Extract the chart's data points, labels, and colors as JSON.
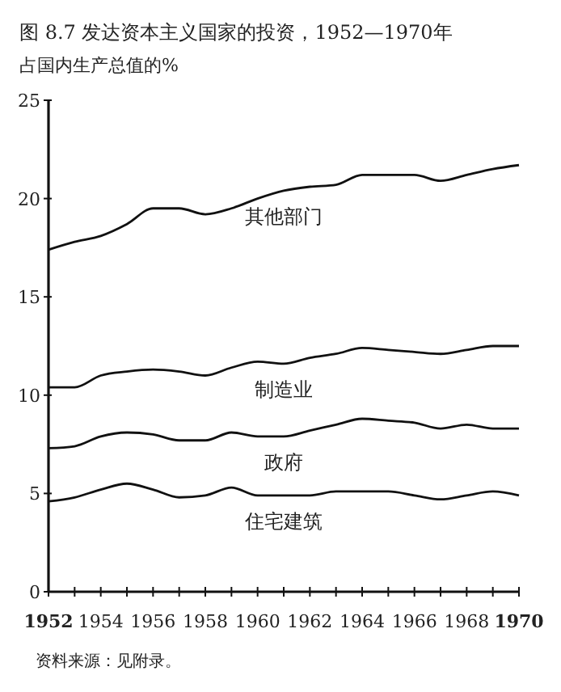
{
  "chart_data": {
    "type": "line",
    "title": "图 8.7 发达资本主义国家的投资，1952—1970年",
    "subtitle": "占国内生产总值的%",
    "annotations": [
      "资料来源：见附录。"
    ],
    "x": [
      1952,
      1953,
      1954,
      1955,
      1956,
      1957,
      1958,
      1959,
      1960,
      1961,
      1962,
      1963,
      1964,
      1965,
      1966,
      1967,
      1968,
      1969,
      1970
    ],
    "series": [
      {
        "name": "其他部门",
        "color": "#111111",
        "values": [
          17.4,
          17.8,
          18.1,
          18.7,
          19.5,
          19.5,
          19.2,
          19.5,
          20.0,
          20.4,
          20.6,
          20.7,
          21.2,
          21.2,
          21.2,
          20.9,
          21.2,
          21.5,
          21.7
        ]
      },
      {
        "name": "制造业",
        "color": "#111111",
        "values": [
          10.4,
          10.4,
          11.0,
          11.2,
          11.3,
          11.2,
          11.0,
          11.4,
          11.7,
          11.6,
          11.9,
          12.1,
          12.4,
          12.3,
          12.2,
          12.1,
          12.3,
          12.5,
          12.5
        ]
      },
      {
        "name": "政府",
        "color": "#111111",
        "values": [
          7.3,
          7.4,
          7.9,
          8.1,
          8.0,
          7.7,
          7.7,
          8.1,
          7.9,
          7.9,
          8.2,
          8.5,
          8.8,
          8.7,
          8.6,
          8.3,
          8.5,
          8.3,
          8.3
        ]
      },
      {
        "name": "住宅建筑",
        "color": "#111111",
        "values": [
          4.6,
          4.8,
          5.2,
          5.5,
          5.2,
          4.8,
          4.9,
          5.3,
          4.9,
          4.9,
          4.9,
          5.1,
          5.1,
          5.1,
          4.9,
          4.7,
          4.9,
          5.1,
          4.9
        ]
      }
    ],
    "xlim": [
      1952,
      1970
    ],
    "xticks": [
      1952,
      {
        "value": 1953,
        "label": null
      },
      1954,
      {
        "value": 1955,
        "label": null
      },
      1956,
      {
        "value": 1957,
        "label": null
      },
      1958,
      {
        "value": 1959,
        "label": null
      },
      1960,
      {
        "value": 1961,
        "label": null
      },
      1962,
      {
        "value": 1963,
        "label": null
      },
      1964,
      {
        "value": 1965,
        "label": null
      },
      1966,
      {
        "value": 1967,
        "label": null
      },
      1968,
      {
        "value": 1969,
        "label": null
      },
      1970
    ],
    "ylim": [
      0,
      25
    ],
    "yticks": [
      0,
      5,
      10,
      15,
      20,
      25
    ],
    "grid": false,
    "marker": "none",
    "line_style": "solid"
  }
}
